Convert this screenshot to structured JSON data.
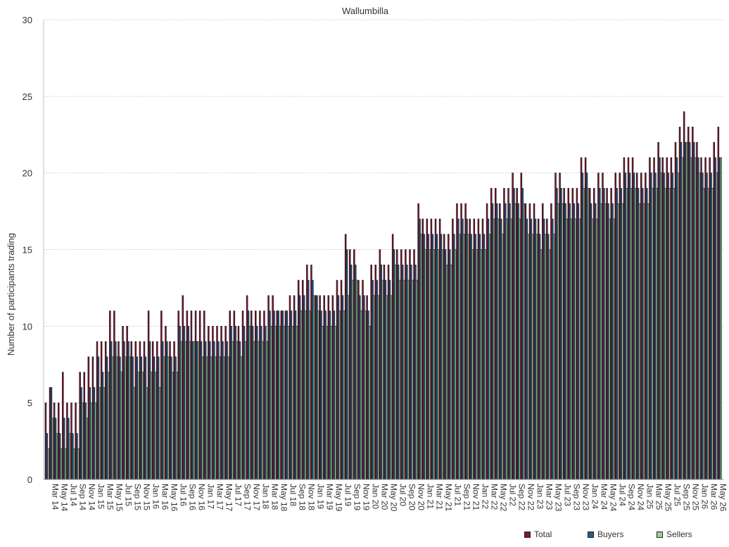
{
  "chart_data": {
    "type": "bar",
    "title": "Wallumbilla",
    "xlabel": "",
    "ylabel": "Number of participants trading",
    "ylim": [
      0,
      30
    ],
    "yticks": [
      0,
      5,
      10,
      15,
      20,
      25,
      30
    ],
    "grid": true,
    "legend_position": "bottom-right",
    "x_start": "Mar 14",
    "x_end": "Jul 26",
    "x_tick_labels": [
      "Mar 14",
      "May 14",
      "Jul 14",
      "Sep 14",
      "Nov 14",
      "Jan 15",
      "Mar 15",
      "May 15",
      "Jul 15",
      "Sep 15",
      "Nov 15",
      "Jan 16",
      "Mar 16",
      "May 16",
      "Jul 16",
      "Sep 16",
      "Nov 16",
      "Jan 17",
      "Mar 17",
      "May 17",
      "Jul 17",
      "Sep 17",
      "Nov 17",
      "Jan 18",
      "Mar 18",
      "May 18",
      "Jul 18",
      "Sep 18",
      "Nov 18",
      "Jan 19",
      "Mar 19",
      "May 19",
      "Jul 19",
      "Sep 19",
      "Nov 19",
      "Jan 20",
      "Mar 20",
      "May 20",
      "Jul 20",
      "Sep 20",
      "Nov 20",
      "Jan 21",
      "Mar 21",
      "May 21",
      "Jul 21",
      "Sep 21",
      "Nov 21",
      "Jan 22",
      "Mar 22",
      "May 22",
      "Jul 22",
      "Sep 22",
      "Nov 22",
      "Jan 23",
      "Mar 23",
      "May 23",
      "Jul 23",
      "Sep 23",
      "Nov 23",
      "Jan 24",
      "Mar 24",
      "May 24",
      "Jul 24",
      "Sep 24",
      "Nov 24",
      "Jan 25",
      "Mar 25",
      "May 25",
      "Jul 25",
      "Sep 25",
      "Nov 25",
      "Jan 26",
      "Mar 26",
      "May 26"
    ],
    "series": [
      {
        "name": "Total",
        "color": "#7f1532",
        "values": [
          5,
          6,
          5,
          5,
          7,
          5,
          5,
          5,
          7,
          7,
          8,
          8,
          9,
          9,
          9,
          11,
          11,
          9,
          10,
          10,
          9,
          9,
          9,
          9,
          11,
          9,
          9,
          11,
          10,
          9,
          9,
          11,
          12,
          11,
          11,
          11,
          11,
          11,
          10,
          10,
          10,
          10,
          10,
          11,
          11,
          10,
          11,
          12,
          11,
          11,
          11,
          11,
          12,
          12,
          11,
          11,
          11,
          12,
          12,
          13,
          13,
          14,
          14,
          12,
          12,
          12,
          12,
          12,
          13,
          13,
          16,
          15,
          15,
          13,
          13,
          12,
          14,
          14,
          15,
          14,
          14,
          16,
          15,
          15,
          15,
          15,
          15,
          18,
          17,
          17,
          17,
          17,
          17,
          16,
          16,
          17,
          18,
          18,
          18,
          17,
          17,
          17,
          17,
          18,
          19,
          19,
          18,
          19,
          19,
          20,
          19,
          20,
          18,
          18,
          18,
          17,
          18,
          17,
          18,
          20,
          20,
          19,
          19,
          19,
          19,
          21,
          21,
          19,
          19,
          20,
          20,
          19,
          19,
          20,
          20,
          21,
          21,
          21,
          20,
          20,
          20,
          21,
          21,
          22,
          21,
          21,
          21,
          22,
          23,
          24,
          23,
          23,
          22,
          21,
          21,
          21,
          22,
          23
        ]
      },
      {
        "name": "Buyers",
        "color": "#1f5f8f",
        "values": [
          3,
          6,
          4,
          3,
          4,
          4,
          3,
          3,
          6,
          5,
          6,
          6,
          8,
          7,
          8,
          9,
          9,
          8,
          9,
          9,
          8,
          8,
          8,
          8,
          9,
          8,
          8,
          9,
          9,
          8,
          8,
          10,
          10,
          10,
          9,
          9,
          9,
          9,
          9,
          9,
          9,
          9,
          9,
          10,
          10,
          9,
          10,
          11,
          10,
          10,
          10,
          10,
          11,
          11,
          11,
          11,
          11,
          11,
          11,
          12,
          12,
          13,
          13,
          12,
          11,
          11,
          11,
          11,
          12,
          12,
          15,
          14,
          14,
          12,
          12,
          11,
          13,
          13,
          14,
          13,
          13,
          15,
          14,
          14,
          14,
          14,
          14,
          17,
          16,
          16,
          16,
          16,
          16,
          15,
          15,
          16,
          17,
          17,
          17,
          16,
          16,
          16,
          16,
          17,
          18,
          18,
          17,
          18,
          18,
          19,
          18,
          19,
          17,
          17,
          17,
          16,
          17,
          16,
          17,
          19,
          19,
          18,
          18,
          18,
          18,
          20,
          20,
          18,
          18,
          19,
          19,
          18,
          18,
          19,
          19,
          20,
          20,
          20,
          19,
          19,
          19,
          20,
          20,
          21,
          20,
          20,
          20,
          21,
          22,
          22,
          22,
          22,
          21,
          20,
          20,
          20,
          21,
          21
        ]
      },
      {
        "name": "Sellers",
        "color": "#9ad19a",
        "values": [
          2,
          4,
          3,
          2,
          2,
          3,
          2,
          2,
          5,
          4,
          5,
          5,
          6,
          6,
          7,
          8,
          8,
          7,
          8,
          8,
          6,
          7,
          7,
          6,
          7,
          7,
          6,
          8,
          8,
          7,
          7,
          9,
          9,
          9,
          9,
          9,
          8,
          8,
          8,
          8,
          8,
          8,
          8,
          9,
          9,
          8,
          9,
          10,
          9,
          9,
          9,
          9,
          10,
          10,
          10,
          10,
          10,
          10,
          10,
          11,
          11,
          11,
          12,
          11,
          10,
          10,
          10,
          10,
          11,
          11,
          12,
          13,
          13,
          11,
          11,
          10,
          12,
          12,
          13,
          12,
          12,
          14,
          13,
          13,
          13,
          13,
          13,
          16,
          15,
          15,
          15,
          15,
          15,
          14,
          14,
          15,
          16,
          16,
          16,
          15,
          15,
          15,
          15,
          16,
          17,
          17,
          16,
          17,
          17,
          18,
          17,
          18,
          16,
          16,
          16,
          15,
          16,
          15,
          16,
          18,
          18,
          17,
          17,
          17,
          17,
          19,
          19,
          17,
          17,
          18,
          18,
          17,
          17,
          18,
          18,
          19,
          19,
          19,
          18,
          18,
          18,
          19,
          19,
          20,
          19,
          19,
          19,
          20,
          21,
          22,
          21,
          21,
          20,
          19,
          19,
          19,
          20,
          21
        ]
      }
    ]
  }
}
